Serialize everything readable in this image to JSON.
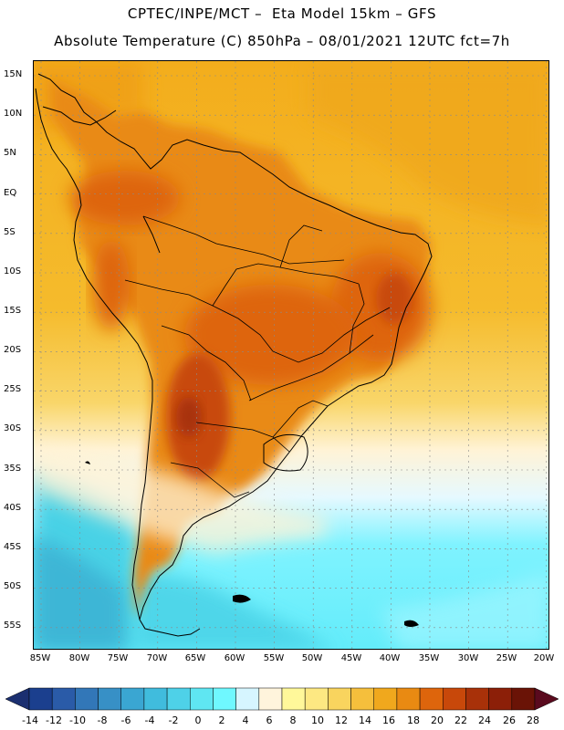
{
  "header": {
    "line1": "CPTEC/INPE/MCT –  Eta Model 15km – GFS",
    "line2": "Absolute Temperature (C) 850hPa – 08/01/2021 12UTC fct=7h"
  },
  "map": {
    "lat_labels": [
      "15N",
      "10N",
      "5N",
      "EQ",
      "5S",
      "10S",
      "15S",
      "20S",
      "25S",
      "30S",
      "35S",
      "40S",
      "45S",
      "50S",
      "55S"
    ],
    "lon_labels": [
      "85W",
      "80W",
      "75W",
      "70W",
      "65W",
      "60W",
      "55W",
      "50W",
      "45W",
      "40W",
      "35W",
      "30W",
      "25W",
      "20W"
    ],
    "colors": {
      "ocean_north": "#f6b822",
      "land_warm": "#e9900f",
      "hot_core": "#c84f10",
      "very_hot": "#a8320a",
      "south_pale": "#fff6dc",
      "cold_cyan": "#5cf3ff",
      "cold_teal": "#49d2e6",
      "cold_deep": "#3cb6d6",
      "coast_line": "#000000",
      "grid_line": "#808080"
    }
  },
  "colorbar": {
    "labels": [
      "-14",
      "-12",
      "-10",
      "-8",
      "-6",
      "-4",
      "-2",
      "0",
      "2",
      "4",
      "6",
      "8",
      "10",
      "12",
      "14",
      "16",
      "18",
      "20",
      "22",
      "24",
      "26",
      "28"
    ],
    "colors": [
      "#1b3f8e",
      "#2a5ba8",
      "#3277b8",
      "#3790c6",
      "#3aa6d2",
      "#40bcdd",
      "#4ed1e8",
      "#5fe6f2",
      "#6ff8ff",
      "#d6f5ff",
      "#fff4dc",
      "#fff89a",
      "#fde882",
      "#f9d45e",
      "#f5bf3c",
      "#f0a81d",
      "#e98a12",
      "#de650c",
      "#c8480a",
      "#a83109",
      "#8c1f08",
      "#6a1306"
    ],
    "under_color": "#1b2f70",
    "over_color": "#5a0a1e"
  }
}
